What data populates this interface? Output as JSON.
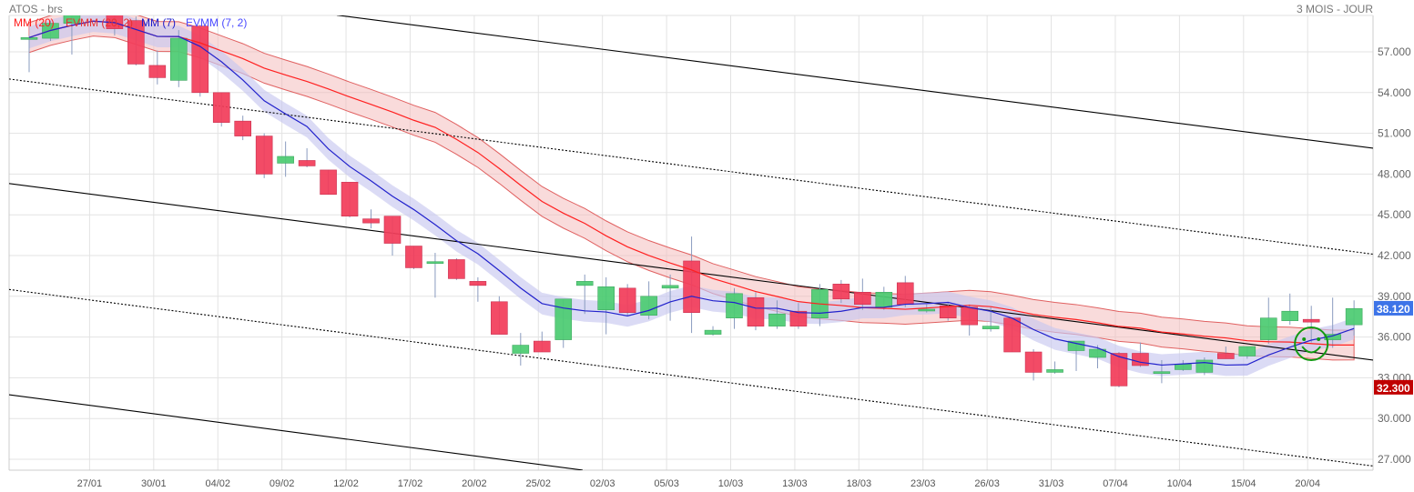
{
  "header": {
    "title": "ATOS - brs",
    "period": "3 MOIS - JOUR"
  },
  "legend": [
    {
      "label": "MM (20)",
      "color": "#ff1a1a"
    },
    {
      "label": "EVMM (20, 2)",
      "color": "#e83030"
    },
    {
      "label": "MM (7)",
      "color": "#1a1acc"
    },
    {
      "label": "EVMM (7, 2)",
      "color": "#4a4aff"
    }
  ],
  "colors": {
    "up": "#4ccb72",
    "down": "#f23d5a",
    "wick": "#8a9bbf",
    "ma20": "#ff2020",
    "ma20_band": "#f4b8b8",
    "ma7": "#2222cc",
    "ma7_band": "#c8c8f0",
    "grid": "#e3e3e3",
    "smiley": "#119911"
  },
  "chart_data": {
    "type": "candlestick",
    "ylim": [
      26,
      60.5
    ],
    "y_ticks": [
      "27.000",
      "30.000",
      "33.000",
      "36.000",
      "39.000",
      "42.000",
      "45.000",
      "48.000",
      "51.000",
      "54.000",
      "57.000"
    ],
    "x_tick_start_index": 3,
    "x_tick_step": 3,
    "x_ticks": [
      "27/01",
      "30/01",
      "04/02",
      "09/02",
      "12/02",
      "17/02",
      "20/02",
      "25/02",
      "02/03",
      "05/03",
      "10/03",
      "13/03",
      "18/03",
      "23/03",
      "26/03",
      "31/03",
      "07/04",
      "10/04",
      "15/04",
      "20/04"
    ],
    "price_tags": [
      {
        "label": "38.120",
        "value": 38.12,
        "color": "#3d74e8"
      },
      {
        "label": "32.300",
        "value": 32.3,
        "color": "#c00000"
      }
    ],
    "ohlc": [
      [
        58.0,
        58.2,
        55.5,
        58.05
      ],
      [
        58.0,
        59.3,
        57.8,
        59.1
      ],
      [
        59.1,
        60.0,
        56.8,
        59.7
      ],
      [
        60.6,
        60.9,
        60.0,
        60.2
      ],
      [
        59.8,
        60.2,
        58.2,
        58.7
      ],
      [
        59.3,
        59.6,
        56.0,
        56.1
      ],
      [
        56.0,
        57.1,
        54.6,
        55.1
      ],
      [
        54.9,
        58.6,
        54.4,
        58.0
      ],
      [
        58.9,
        59.0,
        53.7,
        54.0
      ],
      [
        54.0,
        54.0,
        51.5,
        51.8
      ],
      [
        51.9,
        52.3,
        50.5,
        50.8
      ],
      [
        50.8,
        51.0,
        47.7,
        48.0
      ],
      [
        48.8,
        50.4,
        47.8,
        49.3
      ],
      [
        49.0,
        49.9,
        48.5,
        48.6
      ],
      [
        48.3,
        48.3,
        46.5,
        46.5
      ],
      [
        47.4,
        47.4,
        44.8,
        44.9
      ],
      [
        44.7,
        45.4,
        44.0,
        44.4
      ],
      [
        44.9,
        44.9,
        42.0,
        42.9
      ],
      [
        42.7,
        42.7,
        41.0,
        41.1
      ],
      [
        41.45,
        42.2,
        38.9,
        41.55
      ],
      [
        41.7,
        41.8,
        40.2,
        40.3
      ],
      [
        40.1,
        40.4,
        38.6,
        39.8
      ],
      [
        38.6,
        39.0,
        36.2,
        36.2
      ],
      [
        34.8,
        36.3,
        33.9,
        35.4
      ],
      [
        35.7,
        36.4,
        34.9,
        34.9
      ],
      [
        35.8,
        38.8,
        35.2,
        38.8
      ],
      [
        39.8,
        40.6,
        37.7,
        40.1
      ],
      [
        38.0,
        40.4,
        36.2,
        39.7
      ],
      [
        39.6,
        39.9,
        37.6,
        37.8
      ],
      [
        37.6,
        40.1,
        37.3,
        39.0
      ],
      [
        39.6,
        40.6,
        37.2,
        39.8
      ],
      [
        41.6,
        43.4,
        36.3,
        37.8
      ],
      [
        36.2,
        36.8,
        36.1,
        36.5
      ],
      [
        37.4,
        39.6,
        36.6,
        39.2
      ],
      [
        38.9,
        39.3,
        36.5,
        36.8
      ],
      [
        36.8,
        38.7,
        36.6,
        37.7
      ],
      [
        37.9,
        38.5,
        36.6,
        36.8
      ],
      [
        37.4,
        39.9,
        36.8,
        39.5
      ],
      [
        39.9,
        40.2,
        38.5,
        38.8
      ],
      [
        39.3,
        40.3,
        38.0,
        38.4
      ],
      [
        38.2,
        39.7,
        38.0,
        39.3
      ],
      [
        40.0,
        40.5,
        38.2,
        38.4
      ],
      [
        37.95,
        38.4,
        37.8,
        38.05
      ],
      [
        38.3,
        38.6,
        37.2,
        37.4
      ],
      [
        38.2,
        38.4,
        36.1,
        36.9
      ],
      [
        36.6,
        38.2,
        36.4,
        36.8
      ],
      [
        37.4,
        37.4,
        34.9,
        34.9
      ],
      [
        34.9,
        35.1,
        32.8,
        33.4
      ],
      [
        33.4,
        34.2,
        33.3,
        33.6
      ],
      [
        35.0,
        35.7,
        33.5,
        35.7
      ],
      [
        34.5,
        35.4,
        33.7,
        35.1
      ],
      [
        34.8,
        34.9,
        32.3,
        32.4
      ],
      [
        34.8,
        35.6,
        33.8,
        33.9
      ],
      [
        33.35,
        34.3,
        32.6,
        33.45
      ],
      [
        33.6,
        34.3,
        33.5,
        34.0
      ],
      [
        33.4,
        34.5,
        33.2,
        34.3
      ],
      [
        34.8,
        35.3,
        34.4,
        34.4
      ],
      [
        34.6,
        35.3,
        34.4,
        35.3
      ],
      [
        35.8,
        38.9,
        35.5,
        37.4
      ],
      [
        37.2,
        39.2,
        36.9,
        37.9
      ],
      [
        37.3,
        38.3,
        35.6,
        37.1
      ],
      [
        35.8,
        38.9,
        35.2,
        36.2
      ],
      [
        36.9,
        38.7,
        36.1,
        38.1
      ]
    ],
    "indicators": [
      {
        "name": "MM (20)",
        "period": 20,
        "band": 1.1
      },
      {
        "name": "MM (7)",
        "period": 7,
        "band": 0.8
      }
    ],
    "trend_lines": [
      {
        "style": "solid",
        "x1": 14.4,
        "y1": 59.7,
        "x2": 62.9,
        "y2": 49.9
      },
      {
        "style": "solid",
        "x1": -0.94,
        "y1": 47.3,
        "x2": 62.9,
        "y2": 34.3
      },
      {
        "style": "solid",
        "x1": -0.94,
        "y1": 31.75,
        "x2": 25.9,
        "y2": 26.2
      },
      {
        "style": "dotted",
        "x1": -0.94,
        "y1": 55.0,
        "x2": 62.9,
        "y2": 42.1
      },
      {
        "style": "dotted",
        "x1": -0.94,
        "y1": 39.5,
        "x2": 62.9,
        "y2": 26.5
      }
    ],
    "annotation": {
      "type": "smiley",
      "index": 60,
      "price": 35.5
    }
  }
}
